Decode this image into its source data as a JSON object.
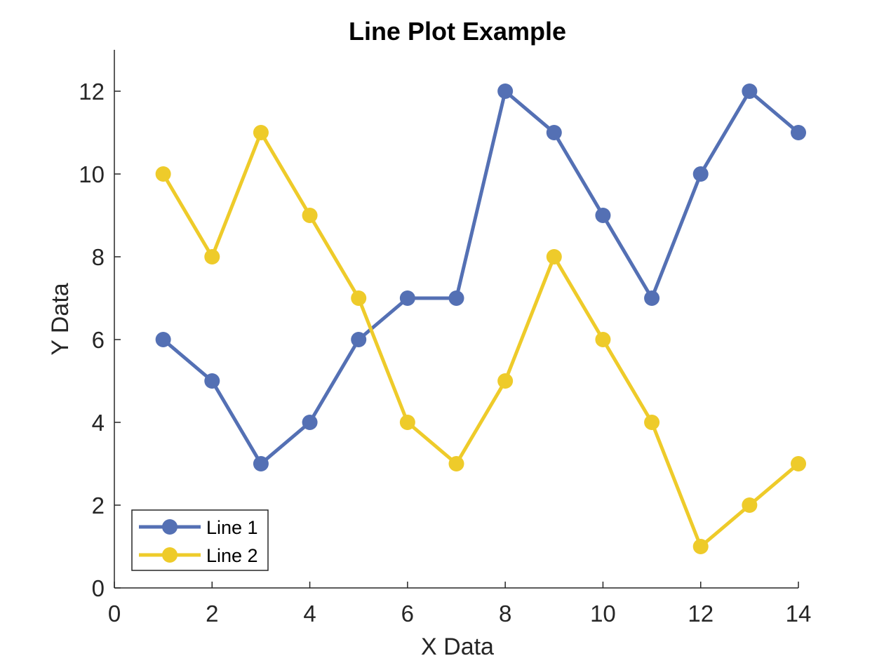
{
  "chart_data": {
    "type": "line",
    "title": "Line Plot Example",
    "xlabel": "X Data",
    "ylabel": "Y Data",
    "xlim": [
      0,
      14
    ],
    "ylim": [
      0,
      13
    ],
    "xticks": [
      0,
      2,
      4,
      6,
      8,
      10,
      12,
      14
    ],
    "xtick_labels": [
      "0",
      "2",
      "4",
      "6",
      "8",
      "10",
      "12",
      "14"
    ],
    "yticks": [
      0,
      2,
      4,
      6,
      8,
      10,
      12
    ],
    "ytick_labels": [
      "0",
      "2",
      "4",
      "6",
      "8",
      "10",
      "12"
    ],
    "grid": false,
    "legend_position": "bottom-left",
    "x": [
      1,
      2,
      3,
      4,
      5,
      6,
      7,
      8,
      9,
      10,
      11,
      12,
      13,
      14
    ],
    "series": [
      {
        "name": "Line 1",
        "color": "#5470b4",
        "values": [
          6,
          5,
          3,
          4,
          6,
          7,
          7,
          12,
          11,
          9,
          7,
          10,
          12,
          11
        ]
      },
      {
        "name": "Line 2",
        "color": "#eecb2a",
        "values": [
          10,
          8,
          11,
          9,
          7,
          4,
          3,
          5,
          8,
          6,
          4,
          1,
          2,
          3
        ]
      }
    ]
  }
}
